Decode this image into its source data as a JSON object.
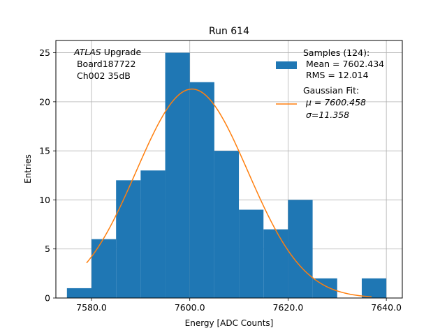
{
  "chart_data": {
    "type": "bar",
    "title": "Run 614",
    "xlabel": "Energy [ADC Counts]",
    "ylabel": "Entries",
    "xlim": [
      7572.75,
      7643.25
    ],
    "ylim": [
      0,
      26.25
    ],
    "grid": true,
    "x_ticks": [
      7580.0,
      7600.0,
      7620.0,
      7640.0
    ],
    "x_tick_labels": [
      "7580.0",
      "7600.0",
      "7620.0",
      "7640.0"
    ],
    "y_ticks": [
      0,
      5,
      10,
      15,
      20,
      25
    ],
    "y_tick_labels": [
      "0",
      "5",
      "10",
      "15",
      "20",
      "25"
    ],
    "bin_edges": [
      7575,
      7580,
      7585,
      7590,
      7595,
      7600,
      7605,
      7610,
      7615,
      7620,
      7625,
      7630,
      7635,
      7640
    ],
    "counts": [
      1,
      6,
      12,
      13,
      25,
      22,
      15,
      9,
      7,
      10,
      2,
      0,
      2
    ],
    "bar_color": "#1f77b4",
    "fit": {
      "name": "Gaussian Fit",
      "color": "#ff7f0e",
      "mu": 7600.458,
      "sigma": 11.358,
      "amplitude": 21.3,
      "x_range": [
        7579,
        7637
      ]
    },
    "legend_position": "upper-right",
    "legend": {
      "samples_lines": [
        "Samples (124):",
        " Mean = 7602.434",
        " RMS = 12.014"
      ],
      "fit_lines": [
        "Gaussian Fit:",
        " μ = 7600.458",
        " σ=11.358"
      ]
    },
    "annotation": {
      "atlas_word": "ATLAS",
      "line1_rest": " Upgrade",
      "line2": " Board187722",
      "line3": " Ch002 35dB"
    }
  }
}
